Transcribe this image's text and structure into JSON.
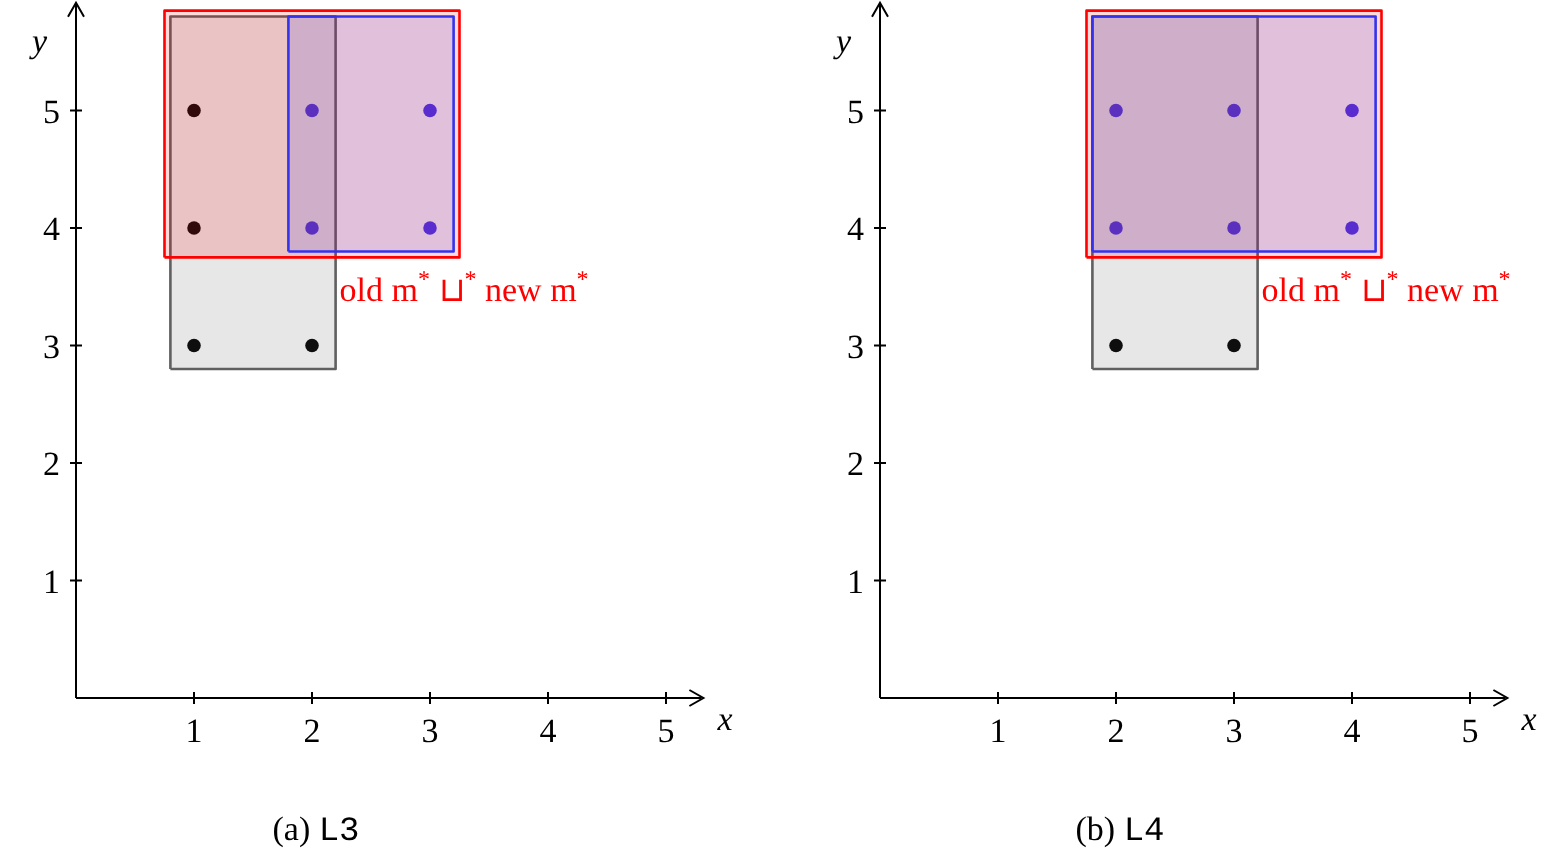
{
  "chart_data": [
    {
      "type": "scatter",
      "title": "(a) L3",
      "xlabel": "x",
      "ylabel": "y",
      "xlim": [
        0,
        5.3
      ],
      "ylim": [
        0,
        5.9
      ],
      "xticks": [
        1,
        2,
        3,
        4,
        5
      ],
      "yticks": [
        1,
        2,
        3,
        4,
        5
      ],
      "grid": false,
      "marker": "circle",
      "annotations": [
        "old m$^{*}$ ⊔$^{*}$ new m$^{*}$"
      ],
      "series": [
        {
          "type": "area",
          "marker": "none",
          "color": "#606060",
          "x": [
            0.8,
            2.2,
            2.2,
            0.8,
            0.8
          ],
          "values": [
            2.8,
            2.8,
            5.8,
            5.8,
            2.8
          ]
        },
        {
          "type": "area",
          "marker": "none",
          "color": "#ff0000",
          "x": [
            0.75,
            3.25,
            3.25,
            0.75,
            0.75
          ],
          "values": [
            3.75,
            3.75,
            5.85,
            5.85,
            3.75
          ]
        },
        {
          "type": "area",
          "marker": "none",
          "color": "#3333ee",
          "x": [
            1.8,
            3.2,
            3.2,
            1.8,
            1.8
          ],
          "values": [
            3.8,
            3.8,
            5.8,
            5.8,
            3.8
          ]
        },
        {
          "color": "#000000",
          "x": [
            1,
            2,
            1,
            1
          ],
          "values": [
            3,
            3,
            4,
            5
          ]
        },
        {
          "color": "#4433ee",
          "x": [
            2,
            2,
            3,
            3
          ],
          "values": [
            4,
            5,
            4,
            5
          ]
        }
      ]
    },
    {
      "type": "scatter",
      "title": "(b) L4",
      "xlabel": "x",
      "ylabel": "y",
      "xlim": [
        0,
        5.3
      ],
      "ylim": [
        0,
        5.9
      ],
      "xticks": [
        1,
        2,
        3,
        4,
        5
      ],
      "yticks": [
        1,
        2,
        3,
        4,
        5
      ],
      "grid": false,
      "marker": "circle",
      "annotations": [
        "old m$^{*}$ ⊔$^{*}$ new m$^{*}$"
      ],
      "series": [
        {
          "type": "area",
          "marker": "none",
          "color": "#606060",
          "x": [
            1.8,
            3.2,
            3.2,
            1.8,
            1.8
          ],
          "values": [
            2.8,
            2.8,
            5.8,
            5.8,
            2.8
          ]
        },
        {
          "type": "area",
          "marker": "none",
          "color": "#ff0000",
          "x": [
            1.75,
            4.25,
            4.25,
            1.75,
            1.75
          ],
          "values": [
            3.75,
            3.75,
            5.85,
            5.85,
            3.75
          ]
        },
        {
          "type": "area",
          "marker": "none",
          "color": "#3333ee",
          "x": [
            1.8,
            4.2,
            4.2,
            1.8,
            1.8
          ],
          "values": [
            3.8,
            3.8,
            5.8,
            5.8,
            3.8
          ]
        },
        {
          "color": "#000000",
          "x": [
            2,
            3
          ],
          "values": [
            3,
            3
          ]
        },
        {
          "color": "#4433ee",
          "x": [
            2,
            2,
            3,
            3,
            4,
            4
          ],
          "values": [
            4,
            5,
            4,
            5,
            4,
            5
          ]
        }
      ]
    }
  ]
}
